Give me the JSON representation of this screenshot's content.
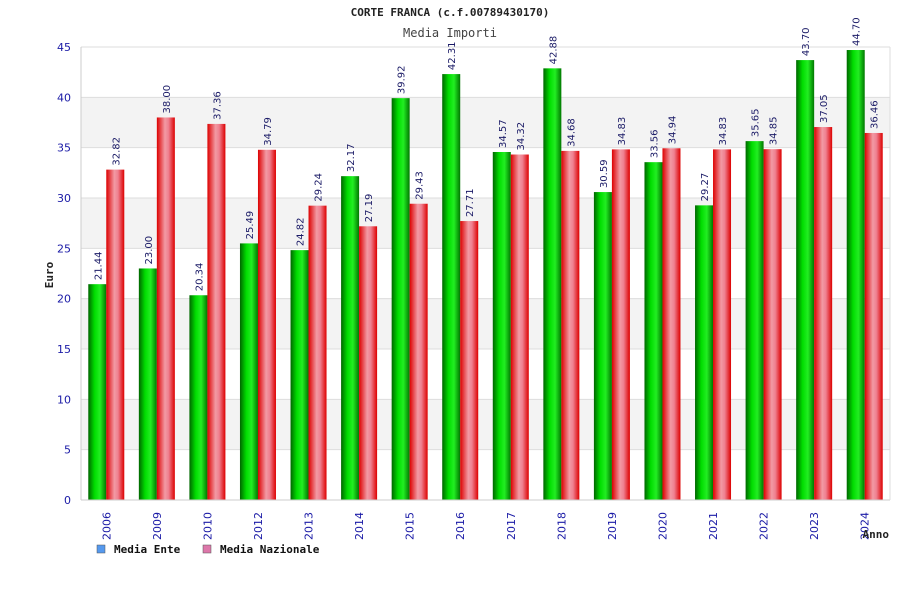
{
  "chart_data": {
    "type": "bar",
    "title": "CORTE FRANCA (c.f.00789430170)",
    "subtitle": "Media Importi",
    "xlabel": "Anno",
    "ylabel": "Euro",
    "ylim": [
      0,
      45
    ],
    "yticks": [
      0,
      5,
      10,
      15,
      20,
      25,
      30,
      35,
      40,
      45
    ],
    "grid": true,
    "legend_position": "bottom-left",
    "categories": [
      "2006",
      "2009",
      "2010",
      "2012",
      "2013",
      "2014",
      "2015",
      "2016",
      "2017",
      "2018",
      "2019",
      "2020",
      "2021",
      "2022",
      "2023",
      "2024"
    ],
    "series": [
      {
        "name": "Media Ente",
        "legend_color": "#5599ee",
        "bar_color": "#22bb22",
        "values": [
          21.44,
          23.0,
          20.34,
          25.49,
          24.82,
          32.17,
          39.92,
          42.31,
          34.57,
          42.88,
          30.59,
          33.56,
          29.27,
          35.65,
          43.7,
          44.7
        ],
        "labels": [
          "21.44",
          "23.00",
          "20.34",
          "25.49",
          "24.82",
          "32.17",
          "39.92",
          "42.31",
          "34.57",
          "42.88",
          "30.59",
          "33.56",
          "29.27",
          "35.65",
          "43.70",
          "44.70"
        ]
      },
      {
        "name": "Media Nazionale",
        "legend_color": "#dd77aa",
        "bar_color": "#ee3344",
        "values": [
          32.82,
          38.0,
          37.36,
          34.79,
          29.24,
          27.19,
          29.43,
          27.71,
          34.32,
          34.68,
          34.83,
          34.94,
          34.83,
          34.85,
          37.05,
          36.46
        ],
        "labels": [
          "32.82",
          "38.00",
          "37.36",
          "34.79",
          "29.24",
          "27.19",
          "29.43",
          "27.71",
          "34.32",
          "34.68",
          "34.83",
          "34.94",
          "34.83",
          "34.85",
          "37.05",
          "36.46"
        ]
      }
    ]
  }
}
